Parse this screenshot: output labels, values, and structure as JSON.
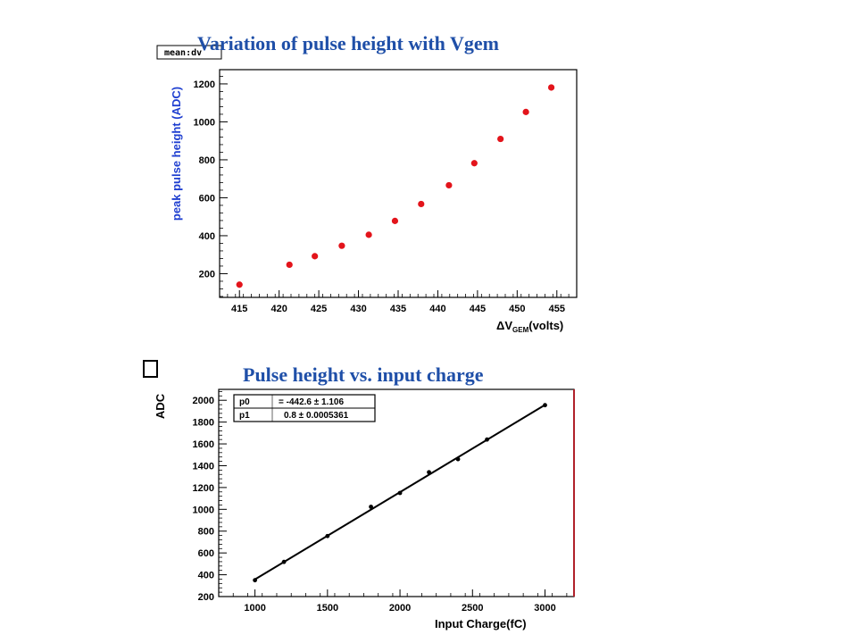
{
  "chart_data": [
    {
      "type": "scatter",
      "title": "Variation of pulse height with Vgem",
      "histogram_label": "mean:dv",
      "xlabel": "ΔV",
      "xlabel_sub": "GEM",
      "xlabel_suffix": "(volts)",
      "ylabel": "peak pulse height (ADC)",
      "xlim": [
        412.5,
        457.5
      ],
      "ylim": [
        75,
        1275
      ],
      "xticks": [
        415,
        420,
        425,
        430,
        435,
        440,
        445,
        450,
        455
      ],
      "yticks": [
        200,
        400,
        600,
        800,
        1000,
        1200
      ],
      "grid": false,
      "marker_color": "#e3141b",
      "series": [
        {
          "x": [
            415,
            421.3,
            424.5,
            427.9,
            431.3,
            434.6,
            437.9,
            441.4,
            444.6,
            447.9,
            451.1,
            454.3
          ],
          "y": [
            142,
            247,
            292,
            347,
            405,
            478,
            567,
            666,
            782,
            910,
            1052,
            1181
          ]
        }
      ]
    },
    {
      "type": "scatter",
      "title": "Pulse height vs. input charge",
      "xlabel": "Input Charge(fC)",
      "ylabel": "ADC",
      "xlim": [
        750,
        3200
      ],
      "ylim": [
        200,
        2100
      ],
      "xticks": [
        1000,
        1500,
        2000,
        2500,
        3000
      ],
      "yticks": [
        200,
        400,
        600,
        800,
        1000,
        1200,
        1400,
        1600,
        1800,
        2000
      ],
      "grid": false,
      "marker_color": "#000000",
      "fit_line": {
        "slope": 0.8,
        "intercept": -442.6,
        "x_range": [
          1000,
          3000
        ]
      },
      "stats": [
        {
          "name": "p0",
          "value": "= -442.6 ± 1.106"
        },
        {
          "name": "p1",
          "value": "0.8 ± 0.0005361"
        }
      ],
      "series": [
        {
          "x": [
            1000,
            1200,
            1500,
            1800,
            2000,
            2200,
            2400,
            2600,
            3000
          ],
          "y": [
            350,
            518,
            755,
            1023,
            1150,
            1340,
            1460,
            1640,
            1955
          ]
        }
      ]
    }
  ]
}
